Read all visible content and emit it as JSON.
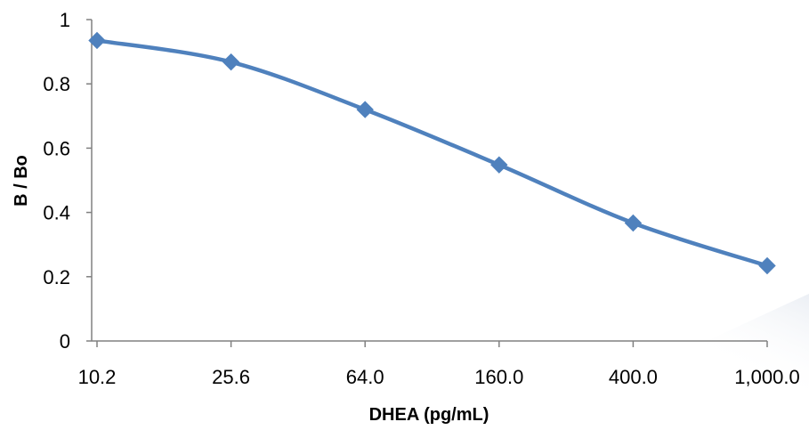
{
  "chart_data": {
    "type": "line",
    "title": "",
    "xlabel": "DHEA (pg/mL)",
    "ylabel": "B / Bo",
    "categories": [
      "10.2",
      "25.6",
      "64.0",
      "160.0",
      "400.0",
      "1,000.0"
    ],
    "x_scale": "log",
    "ylim": [
      0,
      1
    ],
    "y_ticks": [
      "0",
      "0.2",
      "0.4",
      "0.6",
      "0.8",
      "1"
    ],
    "grid": false,
    "legend": "none",
    "series": [
      {
        "values": [
          0.935,
          0.868,
          0.72,
          0.548,
          0.367,
          0.234
        ],
        "color": "#4F81BD",
        "marker": "diamond",
        "smooth": true
      }
    ]
  }
}
